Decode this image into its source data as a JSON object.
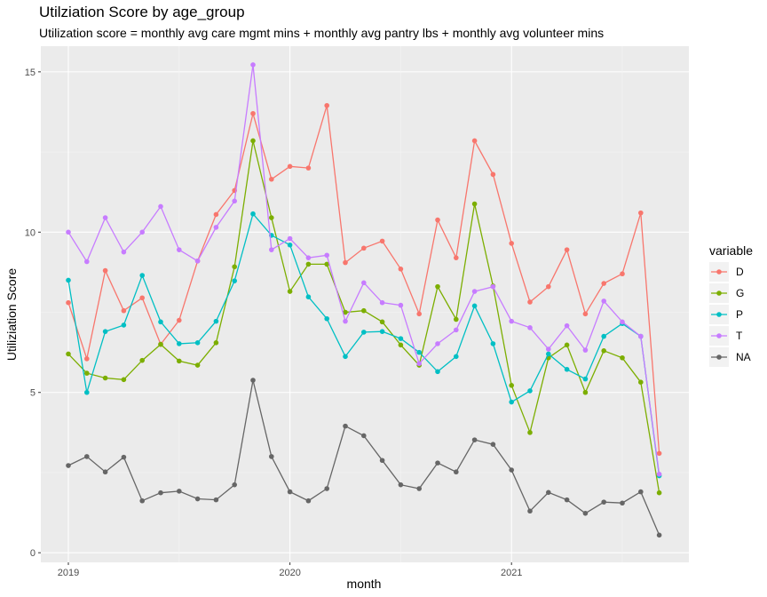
{
  "chart_data": {
    "type": "line",
    "title": "Utilziation Score by age_group",
    "subtitle": "Utilization score = monthly avg care mgmt mins + monthly avg pantry lbs + monthly avg volunteer mins",
    "xlabel": "month",
    "ylabel": "Utiliziation Score",
    "x_tick_labels": [
      "2019",
      "2020",
      "2021"
    ],
    "y_ticks": [
      0,
      5,
      10,
      15
    ],
    "ylim": [
      -0.3,
      15.8
    ],
    "grid": true,
    "legend_position": "right",
    "legend_title": "variable",
    "x": [
      "2019-01",
      "2019-02",
      "2019-03",
      "2019-04",
      "2019-05",
      "2019-06",
      "2019-07",
      "2019-08",
      "2019-09",
      "2019-10",
      "2019-11",
      "2019-12",
      "2020-01",
      "2020-02",
      "2020-03",
      "2020-04",
      "2020-05",
      "2020-06",
      "2020-07",
      "2020-08",
      "2020-09",
      "2020-10",
      "2020-11",
      "2020-12",
      "2021-01",
      "2021-02",
      "2021-03",
      "2021-04",
      "2021-05",
      "2021-06",
      "2021-07",
      "2021-08",
      "2021-09"
    ],
    "series": [
      {
        "name": "D",
        "color": "#F8766D",
        "values": [
          7.8,
          6.05,
          8.8,
          7.55,
          7.95,
          6.5,
          7.25,
          9.1,
          10.55,
          11.3,
          13.7,
          11.65,
          12.05,
          12.0,
          13.95,
          9.05,
          9.5,
          9.72,
          8.85,
          7.45,
          10.38,
          9.2,
          12.85,
          11.8,
          9.65,
          7.82,
          8.3,
          9.45,
          7.45,
          8.4,
          8.7,
          10.6,
          3.1
        ]
      },
      {
        "name": "G",
        "color": "#7CAE00",
        "values": [
          6.2,
          5.6,
          5.45,
          5.4,
          6.0,
          6.5,
          5.98,
          5.85,
          6.55,
          8.92,
          12.85,
          10.45,
          8.15,
          9.0,
          9.0,
          7.5,
          7.55,
          7.2,
          6.48,
          5.85,
          8.3,
          7.28,
          10.88,
          8.32,
          5.22,
          3.75,
          6.08,
          6.48,
          5.0,
          6.3,
          6.08,
          5.32,
          1.87
        ]
      },
      {
        "name": "P",
        "color": "#00BFC4",
        "values": [
          8.5,
          5.0,
          6.9,
          7.1,
          8.65,
          7.2,
          6.52,
          6.55,
          7.22,
          8.48,
          10.57,
          9.9,
          9.6,
          7.98,
          7.3,
          6.12,
          6.88,
          6.9,
          6.68,
          6.25,
          5.65,
          6.12,
          7.7,
          6.52,
          4.7,
          5.05,
          6.2,
          5.72,
          5.42,
          6.75,
          7.15,
          6.75,
          2.4
        ]
      },
      {
        "name": "T",
        "color": "#C77CFF",
        "values": [
          10.0,
          9.08,
          10.45,
          9.38,
          10.0,
          10.8,
          9.45,
          9.1,
          10.15,
          10.97,
          15.22,
          9.45,
          9.8,
          9.2,
          9.28,
          7.22,
          8.42,
          7.8,
          7.72,
          5.9,
          6.52,
          6.95,
          8.15,
          8.3,
          7.22,
          7.02,
          6.35,
          7.08,
          6.32,
          7.85,
          7.2,
          6.75,
          2.45
        ]
      },
      {
        "name": "NA",
        "color": "#666666",
        "values": [
          2.72,
          3.0,
          2.52,
          2.98,
          1.62,
          1.87,
          1.92,
          1.68,
          1.65,
          2.12,
          5.38,
          3.0,
          1.9,
          1.62,
          2.0,
          3.95,
          3.65,
          2.88,
          2.12,
          2.0,
          2.8,
          2.52,
          3.52,
          3.38,
          2.58,
          1.3,
          1.88,
          1.65,
          1.23,
          1.58,
          1.55,
          1.9,
          0.55
        ]
      }
    ]
  }
}
